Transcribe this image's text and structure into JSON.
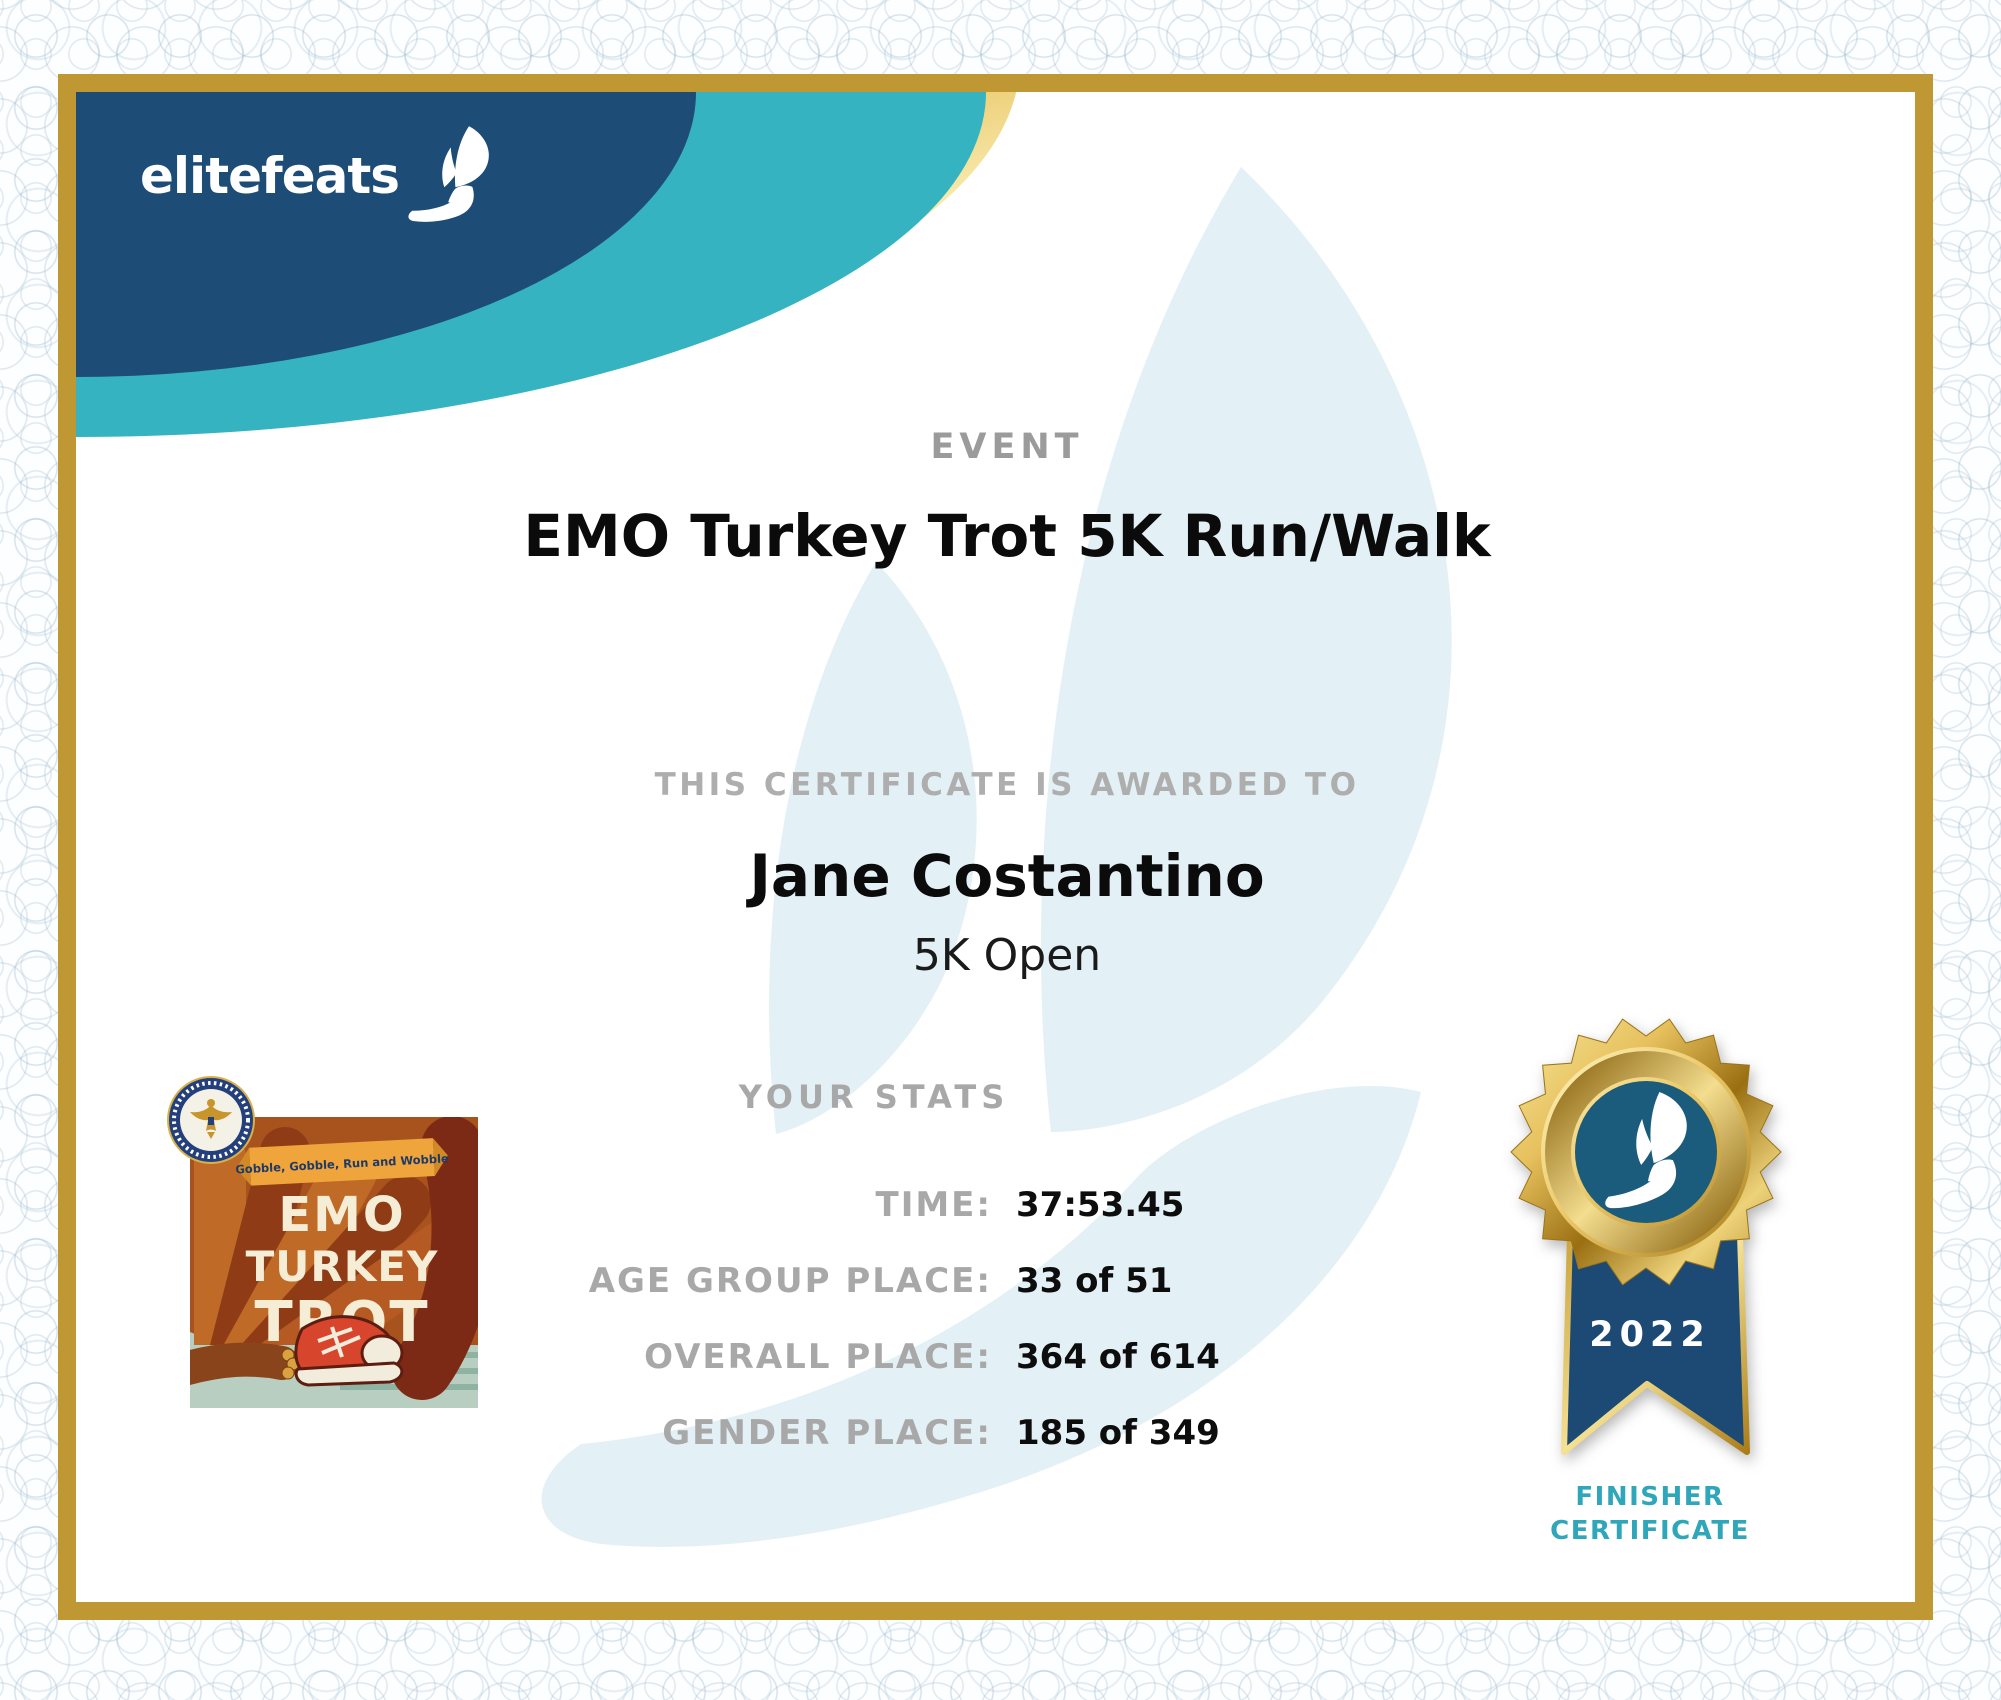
{
  "brand": {
    "name": "elitefeats",
    "logo_icon": "winged-foot-icon"
  },
  "certificate": {
    "event_label": "EVENT",
    "event_name": "EMO Turkey Trot 5K Run/Walk",
    "awarded_label": "THIS CERTIFICATE IS AWARDED TO",
    "recipient_name": "Jane Costantino",
    "division": "5K Open",
    "stats_heading": "YOUR STATS",
    "stats": [
      {
        "label": "TIME:",
        "value": "37:53.45"
      },
      {
        "label": "AGE GROUP PLACE:",
        "value": "33 of 51"
      },
      {
        "label": "OVERALL PLACE:",
        "value": "364 of 614"
      },
      {
        "label": "GENDER PLACE:",
        "value": "185 of 349"
      }
    ]
  },
  "event_logo": {
    "banner_text": "Gobble, Gobble, Run and Wobble",
    "title_line1": "EMO",
    "title_line2": "TURKEY",
    "title_line3": "TROT",
    "badge_icon": "eagle-seal-icon"
  },
  "finisher_badge": {
    "year": "2022",
    "caption_line1": "FINISHER",
    "caption_line2": "CERTIFICATE",
    "medal_icon": "winged-foot-icon"
  },
  "colors": {
    "header_navy": "#1d4c77",
    "header_teal": "#36b3c1",
    "frame_gold": "#bf9733",
    "label_gray": "#a8a8a8",
    "finisher_teal": "#2fa6b9",
    "watermark_blue": "#e3f1f7",
    "ribbon_navy": "#1c4a74"
  }
}
